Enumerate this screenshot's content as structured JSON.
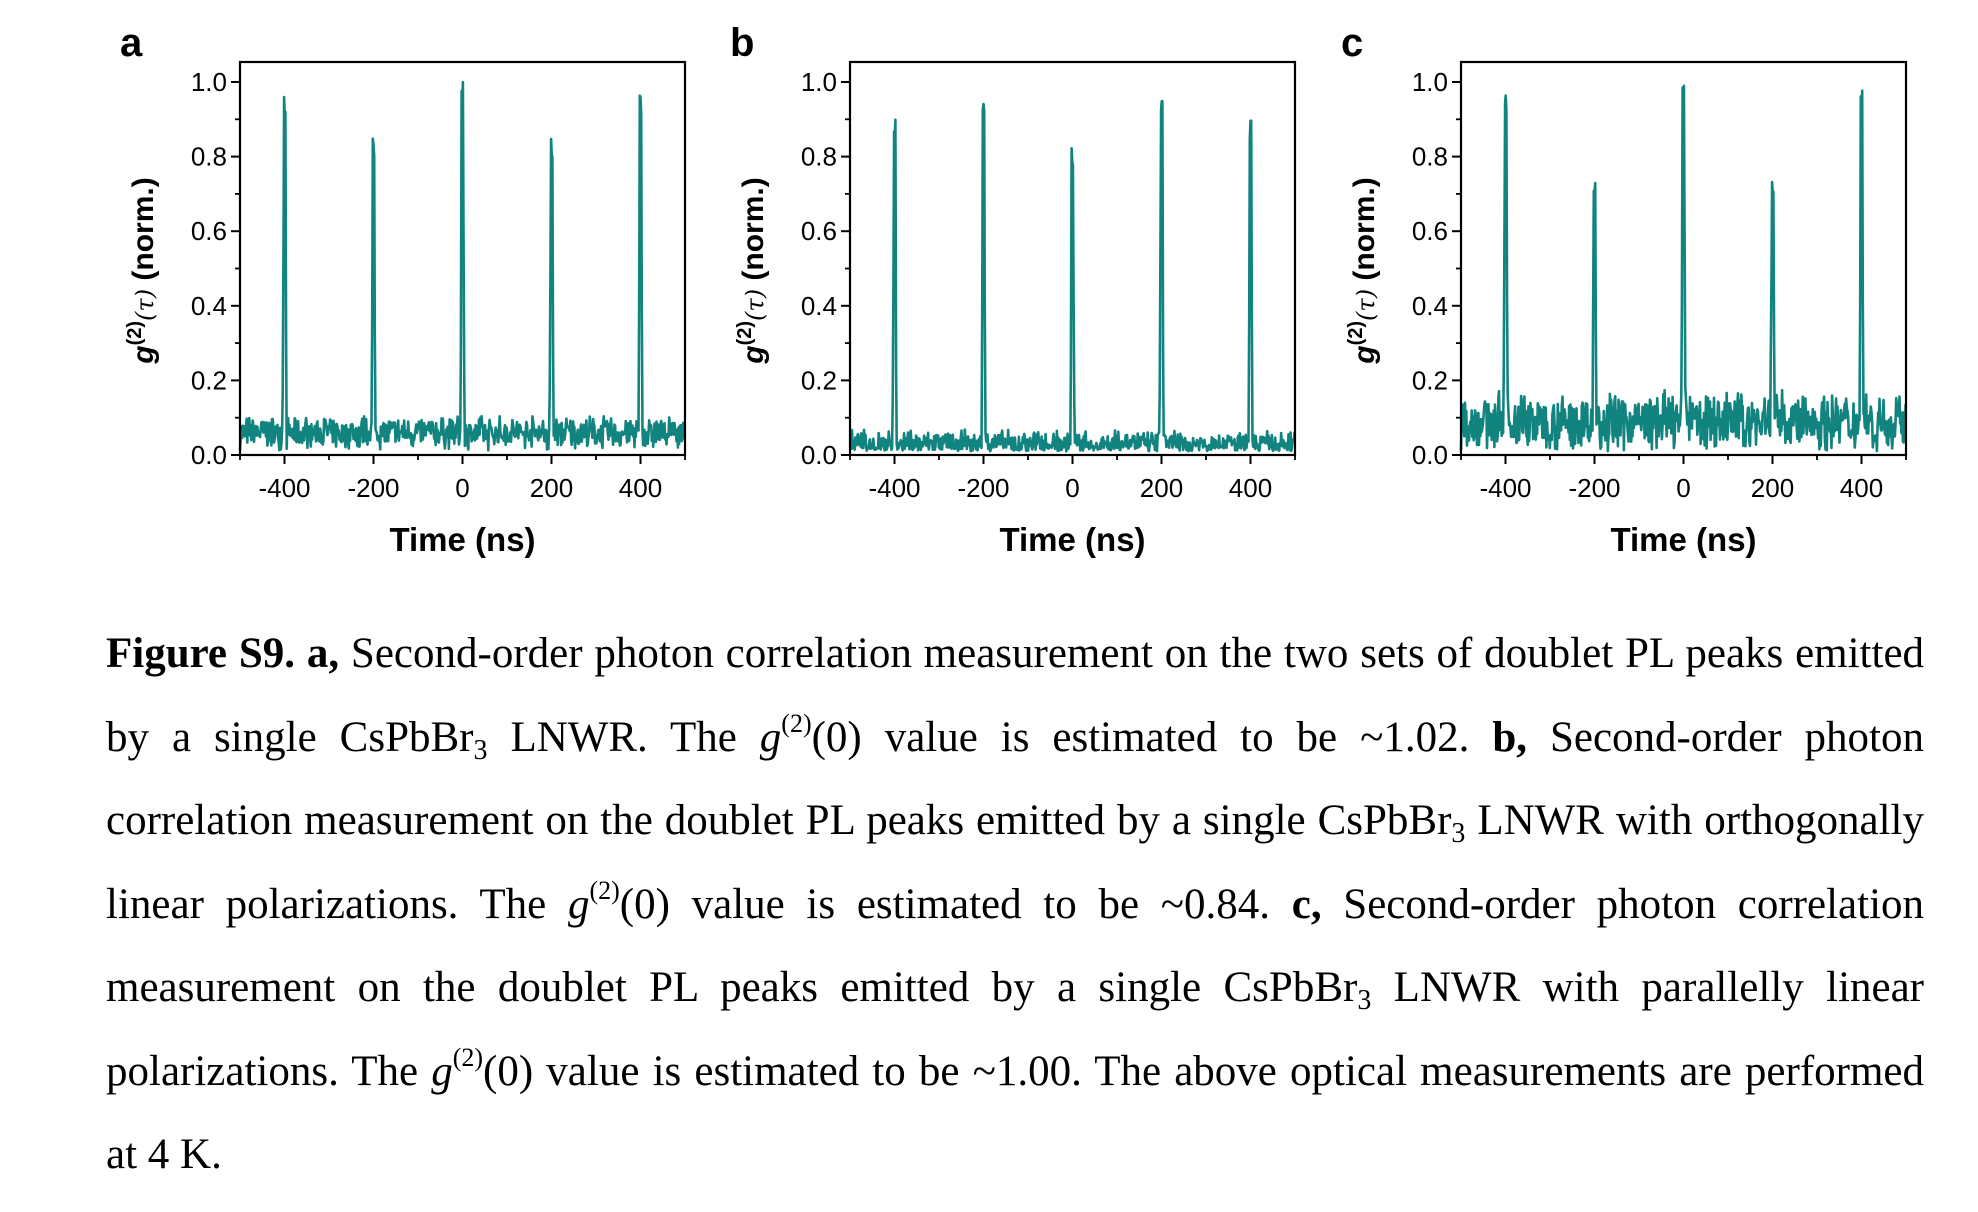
{
  "chart_data": [
    {
      "type": "line",
      "panel_label": "a",
      "xlabel": "Time (ns)",
      "ylabel_main": "g",
      "ylabel_sup": "(2)",
      "ylabel_arg": "(τ)",
      "ylabel_unit": " (norm.)",
      "xlim": [
        -500,
        500
      ],
      "ylim": [
        0,
        1.0
      ],
      "xticks": [
        -400,
        -200,
        0,
        200,
        400
      ],
      "yticks": [
        0.0,
        0.2,
        0.4,
        0.6,
        0.8,
        1.0
      ],
      "ytick_labels": [
        "0.0",
        "0.2",
        "0.4",
        "0.6",
        "0.8",
        "1.0"
      ],
      "color": "#128480",
      "series": [
        {
          "peaks": [
            {
              "x": -400,
              "height": 0.98
            },
            {
              "x": -200,
              "height": 0.85
            },
            {
              "x": 0,
              "height": 1.0
            },
            {
              "x": 200,
              "height": 0.85
            },
            {
              "x": 400,
              "height": 0.98
            }
          ],
          "baseline_mean": 0.06,
          "baseline_noise": 0.05
        }
      ]
    },
    {
      "type": "line",
      "panel_label": "b",
      "xlabel": "Time (ns)",
      "ylabel_main": "g",
      "ylabel_sup": "(2)",
      "ylabel_arg": "(τ)",
      "ylabel_unit": " (norm.)",
      "xlim": [
        -500,
        500
      ],
      "ylim": [
        0,
        1.0
      ],
      "xticks": [
        -400,
        -200,
        0,
        200,
        400
      ],
      "yticks": [
        0.0,
        0.2,
        0.4,
        0.6,
        0.8,
        1.0
      ],
      "ytick_labels": [
        "0.0",
        "0.2",
        "0.4",
        "0.6",
        "0.8",
        "1.0"
      ],
      "color": "#128480",
      "series": [
        {
          "peaks": [
            {
              "x": -400,
              "height": 0.9
            },
            {
              "x": -200,
              "height": 0.99
            },
            {
              "x": 0,
              "height": 0.83
            },
            {
              "x": 200,
              "height": 0.99
            },
            {
              "x": 400,
              "height": 0.9
            }
          ],
          "baseline_mean": 0.03,
          "baseline_noise": 0.04
        }
      ]
    },
    {
      "type": "line",
      "panel_label": "c",
      "xlabel": "Time (ns)",
      "ylabel_main": "g",
      "ylabel_sup": "(2)",
      "ylabel_arg": "(τ)",
      "ylabel_unit": " (norm.)",
      "xlim": [
        -500,
        500
      ],
      "ylim": [
        0,
        1.0
      ],
      "xticks": [
        -400,
        -200,
        0,
        200,
        400
      ],
      "yticks": [
        0.0,
        0.2,
        0.4,
        0.6,
        0.8,
        1.0
      ],
      "ytick_labels": [
        "0.0",
        "0.2",
        "0.4",
        "0.6",
        "0.8",
        "1.0"
      ],
      "color": "#128480",
      "series": [
        {
          "peaks": [
            {
              "x": -400,
              "height": 0.99
            },
            {
              "x": -200,
              "height": 0.75
            },
            {
              "x": 0,
              "height": 0.99
            },
            {
              "x": 200,
              "height": 0.75
            },
            {
              "x": 400,
              "height": 0.99
            }
          ],
          "baseline_mean": 0.09,
          "baseline_noise": 0.09
        }
      ]
    }
  ],
  "caption": {
    "fig_label": "Figure S9.",
    "a_label": "a,",
    "t1": "Second-order photon correlation measurement on the two sets of doublet PL peaks emitted by a single CsPbBr",
    "t1_sub": "3",
    "t2": " LNWR. The ",
    "g": "g",
    "g_sup": "(2)",
    "g0": "(0)",
    "t3": " value is estimated to be ~1.02. ",
    "b_label": "b,",
    "t4": " Second-order photon correlation measurement on the doublet PL peaks emitted by a single CsPbBr",
    "t4_sub": "3",
    "t5": " LNWR with orthogonally linear polarizations. The ",
    "t6": " value is estimated to be ~0.84. ",
    "c_label": "c,",
    "t7": " Second-order photon correlation measurement on the doublet PL peaks emitted by a single CsPbBr",
    "t7_sub": "3",
    "t8": " LNWR with parallelly linear polarizations. The ",
    "t9": " value is estimated to be ~1.00. The above optical measurements are performed at 4 K."
  }
}
